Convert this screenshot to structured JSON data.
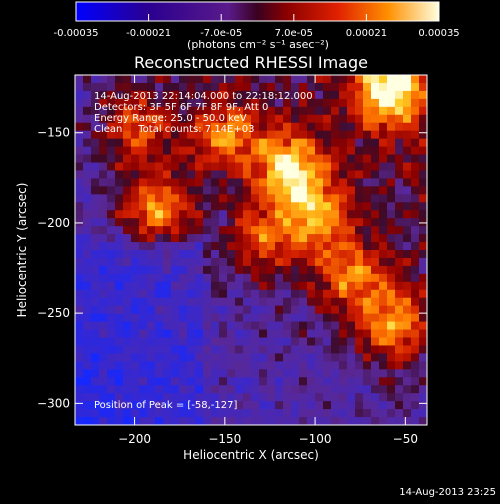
{
  "chart_data": {
    "type": "heatmap",
    "title": "Reconstructed RHESSI Image",
    "xlabel": "Heliocentric X (arcsec)",
    "ylabel": "Heliocentric Y (arcsec)",
    "xlim": [
      -233,
      -38
    ],
    "ylim": [
      -312,
      -118
    ],
    "x_ticks": [
      -200,
      -150,
      -100,
      -50
    ],
    "y_ticks": [
      -150,
      -200,
      -250,
      -300
    ],
    "colorbar": {
      "range": [
        -0.00035,
        0.00035
      ],
      "tick_values": [
        -0.00035,
        -0.00021,
        -7e-05,
        7e-05,
        0.00021,
        0.00035
      ],
      "tick_labels": [
        "-0.00035",
        "-0.00021",
        "-7.0e-05",
        "7.0e-05",
        "0.00021",
        "0.00035"
      ],
      "unit_label": "(photons cm⁻² s⁻¹ asec⁻²)"
    },
    "annotations": [
      "14-Aug-2013 22:14:04.000 to 22:18:12.000",
      "Detectors: 3F 5F 6F 7F 8F 9F, Att 0",
      "Energy Range: 25.0 - 50.0 keV",
      "Clean     Total counts: 7.14E+03"
    ],
    "peak_label": "Position of Peak = [-58,-127]",
    "peak_position": [
      -58,
      -127
    ],
    "bright_sources": [
      {
        "x": -115,
        "y": -170,
        "level": 1.0
      },
      {
        "x": -188,
        "y": -191,
        "level": 0.9
      },
      {
        "x": -58,
        "y": -127,
        "level": 1.0
      },
      {
        "x": -58,
        "y": -255,
        "level": 0.85
      },
      {
        "x": -82,
        "y": -228,
        "level": 0.7
      },
      {
        "x": -150,
        "y": -152,
        "level": 0.7
      },
      {
        "x": -200,
        "y": -148,
        "level": 0.65
      },
      {
        "x": -130,
        "y": -210,
        "level": 0.6
      },
      {
        "x": -100,
        "y": -195,
        "level": 0.75
      }
    ]
  },
  "footer": {
    "timestamp": "14-Aug-2013 23:25"
  }
}
